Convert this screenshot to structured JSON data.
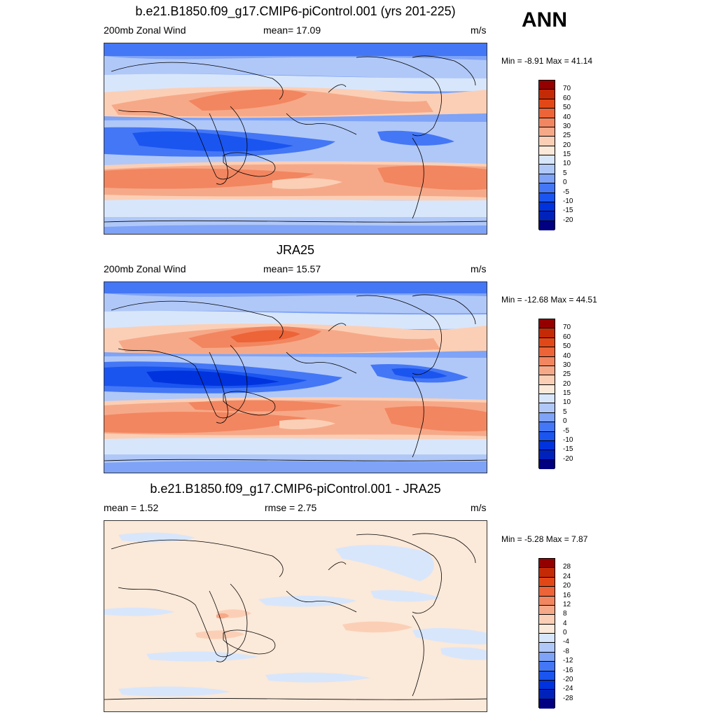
{
  "season": "ANN",
  "colors": {
    "main": [
      "#000080",
      "#0022bb",
      "#0033dd",
      "#1b55f0",
      "#4477f5",
      "#7ea3f7",
      "#b0c8f8",
      "#d8e6fb",
      "#fbe9d9",
      "#fbcfb6",
      "#f6a988",
      "#f28660",
      "#ec6437",
      "#e24817",
      "#c52a06",
      "#940000"
    ],
    "diff": [
      "#000080",
      "#0022bb",
      "#0033dd",
      "#1b55f0",
      "#4477f5",
      "#7ea3f7",
      "#b0c8f8",
      "#d8e6fb",
      "#fbe9d9",
      "#fbcfb6",
      "#f6a988",
      "#f28660",
      "#ec6437",
      "#e24817",
      "#c52a06",
      "#940000"
    ],
    "coast": "#000000"
  },
  "panels": [
    {
      "title": "b.e21.B1850.f09_g17.CMIP6-piControl.001 (yrs 201-225)",
      "left": "200mb Zonal Wind",
      "center": "mean=  17.09",
      "right": "m/s",
      "minmax": "Min =  -8.91 Max =  41.14",
      "scale": "main"
    },
    {
      "title": "JRA25",
      "left": "200mb Zonal Wind",
      "center": "mean=  15.57",
      "right": "m/s",
      "minmax": "Min = -12.68 Max =  44.51",
      "scale": "main"
    },
    {
      "title": "b.e21.B1850.f09_g17.CMIP6-piControl.001 - JRA25",
      "left": "mean =   1.52",
      "center": "rmse =   2.75",
      "right": "m/s",
      "minmax": "Min =  -5.28 Max =   7.87",
      "scale": "diff"
    }
  ],
  "chart_data": [
    {
      "type": "heatmap",
      "title": "b.e21.B1850.f09_g17.CMIP6-piControl.001 (yrs 201-225)",
      "variable": "200mb Zonal Wind",
      "units": "m/s",
      "mean": 17.09,
      "min": -8.91,
      "max": 41.14,
      "colorbar_levels": [
        "70",
        "60",
        "50",
        "40",
        "30",
        "25",
        "20",
        "15",
        "10",
        "5",
        "0",
        "-5",
        "-10",
        "-15",
        "-20"
      ],
      "projection": "cylindrical equidistant, centered 180"
    },
    {
      "type": "heatmap",
      "title": "JRA25",
      "variable": "200mb Zonal Wind",
      "units": "m/s",
      "mean": 15.57,
      "min": -12.68,
      "max": 44.51,
      "colorbar_levels": [
        "70",
        "60",
        "50",
        "40",
        "30",
        "25",
        "20",
        "15",
        "10",
        "5",
        "0",
        "-5",
        "-10",
        "-15",
        "-20"
      ],
      "projection": "cylindrical equidistant, centered 180"
    },
    {
      "type": "heatmap",
      "title": "b.e21.B1850.f09_g17.CMIP6-piControl.001 - JRA25",
      "variable": "200mb Zonal Wind difference",
      "units": "m/s",
      "mean": 1.52,
      "rmse": 2.75,
      "min": -5.28,
      "max": 7.87,
      "colorbar_levels": [
        "28",
        "24",
        "20",
        "16",
        "12",
        "8",
        "4",
        "0",
        "-4",
        "-8",
        "-12",
        "-16",
        "-20",
        "-24",
        "-28"
      ],
      "projection": "cylindrical equidistant, centered 180"
    }
  ]
}
